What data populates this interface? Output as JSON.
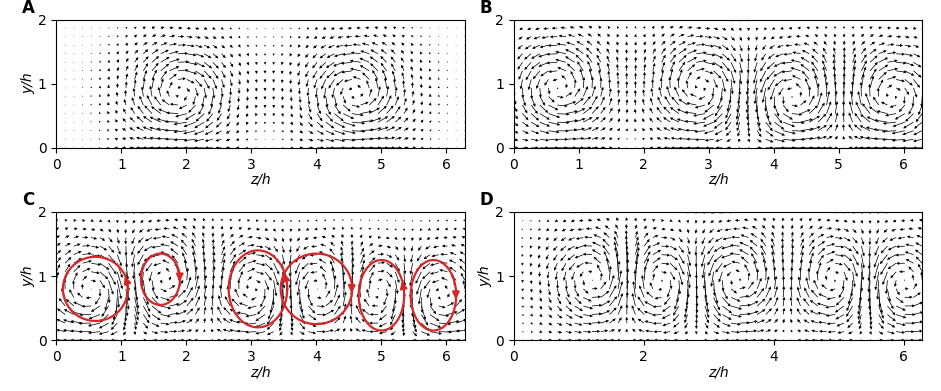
{
  "chart_data": [
    {
      "type": "quiver",
      "title": "A",
      "xlabel": "z/h",
      "ylabel": "y/h",
      "xlim": [
        0,
        6.283
      ],
      "ylim": [
        0,
        2
      ],
      "xticks": [
        0,
        1,
        2,
        3,
        4,
        5,
        6
      ],
      "yticks": [
        0,
        1,
        2
      ],
      "color": "#000000",
      "vortices": [
        {
          "z": 1.9,
          "y": 0.85,
          "sense": -1
        },
        {
          "z": 4.6,
          "y": 0.85,
          "sense": 1
        }
      ]
    },
    {
      "type": "quiver",
      "title": "B",
      "xlabel": "z/h",
      "xlim": [
        0,
        6.283
      ],
      "ylim": [
        0,
        2
      ],
      "xticks": [
        0,
        1,
        2,
        3,
        4,
        5,
        6
      ],
      "yticks": [
        0,
        1,
        2
      ],
      "color": "#000000",
      "vortices": [
        {
          "z": 0.7,
          "y": 0.95,
          "sense": 1
        },
        {
          "z": 2.9,
          "y": 0.95,
          "sense": -1
        },
        {
          "z": 4.3,
          "y": 0.8,
          "sense": 1
        },
        {
          "z": 5.8,
          "y": 0.8,
          "sense": -1
        }
      ]
    },
    {
      "type": "quiver",
      "title": "C",
      "xlabel": "z/h",
      "ylabel": "y/h",
      "xlim": [
        0,
        6.283
      ],
      "ylim": [
        0,
        2
      ],
      "xticks": [
        0,
        1,
        2,
        3,
        4,
        5,
        6
      ],
      "yticks": [
        0,
        1,
        2
      ],
      "color": "#000000",
      "vortices": [
        {
          "z": 0.6,
          "y": 0.8,
          "sense": -1
        },
        {
          "z": 1.6,
          "y": 0.95,
          "sense": 1
        },
        {
          "z": 3.1,
          "y": 0.8,
          "sense": -1
        },
        {
          "z": 4.0,
          "y": 0.8,
          "sense": 1
        },
        {
          "z": 5.0,
          "y": 0.75,
          "sense": -1
        },
        {
          "z": 5.8,
          "y": 0.7,
          "sense": 1
        }
      ],
      "loops": {
        "color": "#d62728",
        "items": [
          {
            "z": 0.6,
            "y": 0.8,
            "rz": 0.5,
            "ry": 0.5,
            "sense": -1
          },
          {
            "z": 1.6,
            "y": 0.95,
            "rz": 0.3,
            "ry": 0.4,
            "sense": 1
          },
          {
            "z": 3.1,
            "y": 0.8,
            "rz": 0.45,
            "ry": 0.6,
            "sense": -1
          },
          {
            "z": 4.0,
            "y": 0.8,
            "rz": 0.55,
            "ry": 0.55,
            "sense": 1
          },
          {
            "z": 5.0,
            "y": 0.7,
            "rz": 0.35,
            "ry": 0.55,
            "sense": -1
          },
          {
            "z": 5.8,
            "y": 0.7,
            "rz": 0.35,
            "ry": 0.55,
            "sense": 1
          }
        ]
      }
    },
    {
      "type": "quiver",
      "title": "D",
      "xlabel": "z/h",
      "ylabel": "y/h",
      "xlim": [
        0,
        6.283
      ],
      "ylim": [
        0,
        2
      ],
      "xticks": [
        0,
        2,
        4,
        6
      ],
      "yticks": [
        0,
        1,
        2
      ],
      "color": "#000000",
      "vortices": [
        {
          "z": 1.3,
          "y": 0.95,
          "sense": 1
        },
        {
          "z": 2.2,
          "y": 0.9,
          "sense": -1
        },
        {
          "z": 3.4,
          "y": 0.95,
          "sense": 1
        },
        {
          "z": 5.0,
          "y": 0.95,
          "sense": -1
        },
        {
          "z": 5.9,
          "y": 0.9,
          "sense": 1
        }
      ]
    }
  ]
}
